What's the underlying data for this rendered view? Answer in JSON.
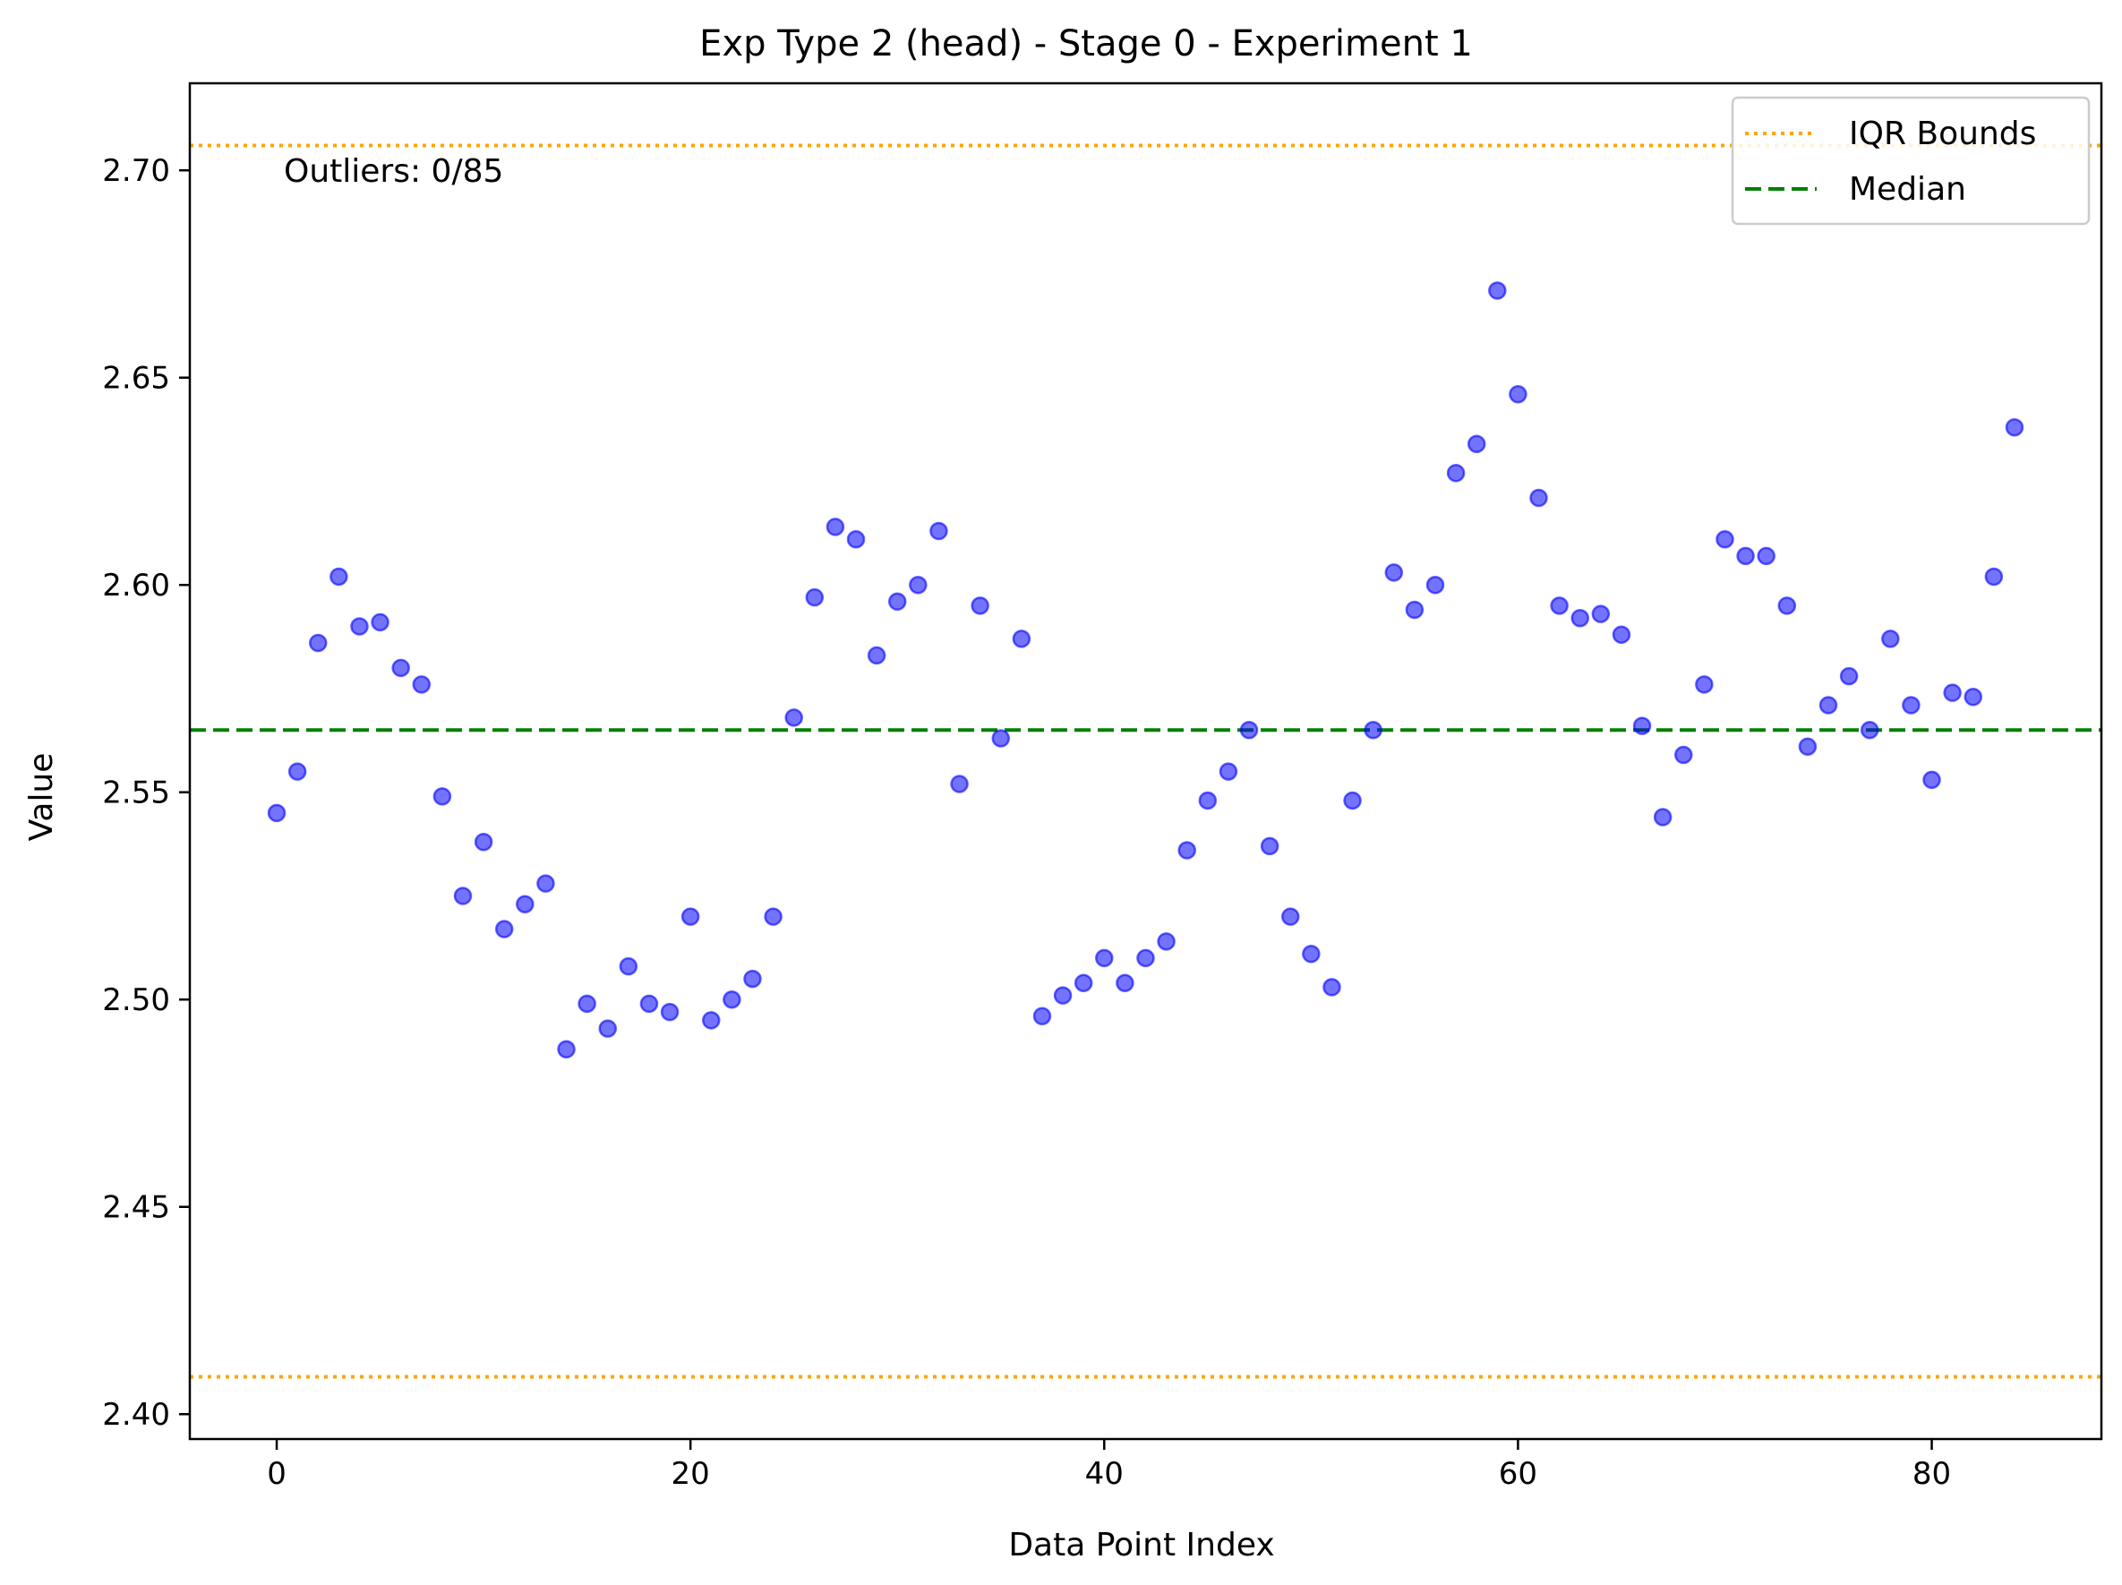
{
  "chart_data": {
    "type": "scatter",
    "title": "Exp Type 2 (head) - Stage 0 - Experiment 1",
    "xlabel": "Data Point Index",
    "ylabel": "Value",
    "xlim": [
      -4.2,
      88.2
    ],
    "ylim": [
      2.394,
      2.721
    ],
    "xticks": [
      0,
      20,
      40,
      60,
      80
    ],
    "xtick_labels": [
      "0",
      "20",
      "40",
      "60",
      "80"
    ],
    "yticks": [
      2.4,
      2.45,
      2.5,
      2.55,
      2.6,
      2.65,
      2.7
    ],
    "ytick_labels": [
      "2.40",
      "2.45",
      "2.50",
      "2.55",
      "2.60",
      "2.65",
      "2.70"
    ],
    "grid": false,
    "annotation": "Outliers: 0/85",
    "legend": {
      "placement": "top-right",
      "entries": [
        {
          "label": "IQR Bounds",
          "color": "#ffa500",
          "style": "dotted"
        },
        {
          "label": "Median",
          "color": "#008000",
          "style": "dashed"
        }
      ]
    },
    "reference_lines": {
      "iqr_upper": 2.706,
      "iqr_lower": 2.409,
      "median": 2.565
    },
    "series": [
      {
        "color": "#0000ff",
        "x": [
          0,
          1,
          2,
          3,
          4,
          5,
          6,
          7,
          8,
          9,
          10,
          11,
          12,
          13,
          14,
          15,
          16,
          17,
          18,
          19,
          20,
          21,
          22,
          23,
          24,
          25,
          26,
          27,
          28,
          29,
          30,
          31,
          32,
          33,
          34,
          35,
          36,
          37,
          38,
          39,
          40,
          41,
          42,
          43,
          44,
          45,
          46,
          47,
          48,
          49,
          50,
          51,
          52,
          53,
          54,
          55,
          56,
          57,
          58,
          59,
          60,
          61,
          62,
          63,
          64,
          65,
          66,
          67,
          68,
          69,
          70,
          71,
          72,
          73,
          74,
          75,
          76,
          77,
          78,
          79,
          80,
          81,
          82,
          83,
          84
        ],
        "y": [
          2.545,
          2.555,
          2.586,
          2.602,
          2.59,
          2.591,
          2.58,
          2.576,
          2.549,
          2.525,
          2.538,
          2.517,
          2.523,
          2.528,
          2.488,
          2.499,
          2.493,
          2.508,
          2.499,
          2.497,
          2.52,
          2.495,
          2.5,
          2.505,
          2.52,
          2.568,
          2.597,
          2.614,
          2.611,
          2.583,
          2.596,
          2.6,
          2.613,
          2.552,
          2.595,
          2.563,
          2.587,
          2.496,
          2.501,
          2.504,
          2.51,
          2.504,
          2.51,
          2.514,
          2.536,
          2.548,
          2.555,
          2.565,
          2.537,
          2.52,
          2.511,
          2.503,
          2.548,
          2.565,
          2.603,
          2.594,
          2.6,
          2.627,
          2.634,
          2.671,
          2.646,
          2.621,
          2.595,
          2.592,
          2.593,
          2.588,
          2.566,
          2.544,
          2.559,
          2.576,
          2.611,
          2.607,
          2.607,
          2.595,
          2.561,
          2.571,
          2.578,
          2.565,
          2.587,
          2.571,
          2.553,
          2.574,
          2.573,
          2.602,
          2.638
        ]
      }
    ]
  }
}
